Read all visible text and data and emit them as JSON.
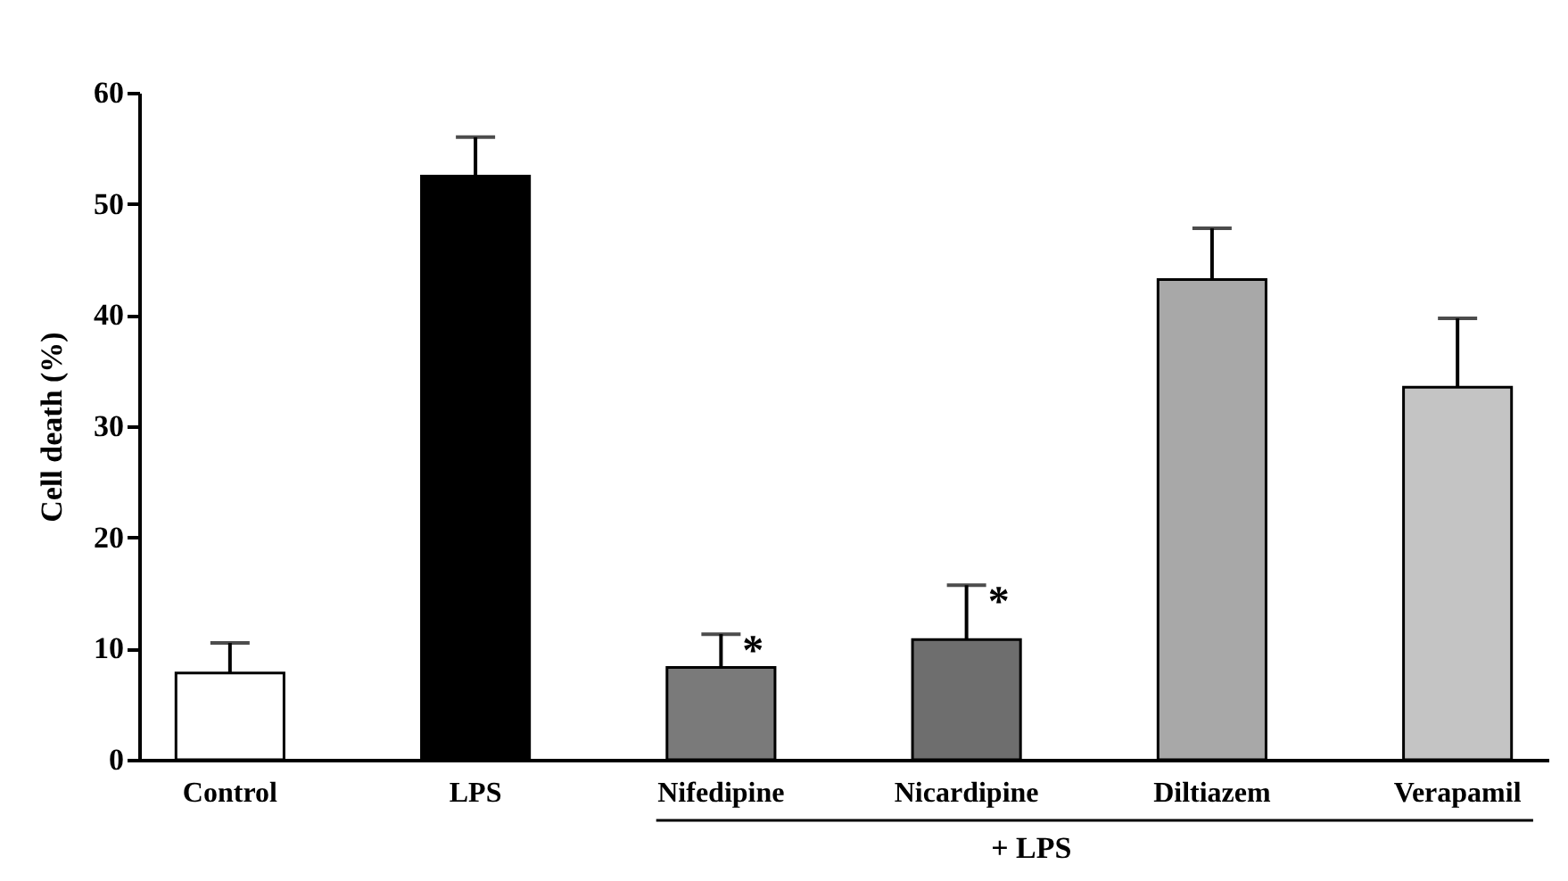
{
  "chart_data": {
    "type": "bar",
    "ylabel": "Cell death (%)",
    "categories": [
      "Control",
      "LPS",
      "Nifedipine",
      "Nicardipine",
      "Diltiazem",
      "Verapamil"
    ],
    "values": [
      7.8,
      52.5,
      8.3,
      10.8,
      43.2,
      33.5
    ],
    "errors": [
      [
        7.8,
        10.5
      ],
      [
        52.5,
        56
      ],
      [
        8.3,
        11.3
      ],
      [
        10.8,
        15.7
      ],
      [
        43.2,
        47.8
      ],
      [
        33.5,
        39.7
      ]
    ],
    "colors": [
      "#ffffff",
      "#000000",
      "#7a7a7a",
      "#6e6e6e",
      "#a8a8a8",
      "#c4c4c4"
    ],
    "ylim": [
      0,
      60
    ],
    "yticks": [
      0,
      10,
      20,
      30,
      40,
      50,
      60
    ],
    "grid": false,
    "annotations": [
      {
        "text": "*",
        "x": "Nifedipine",
        "y": 11.3
      },
      {
        "text": "*",
        "x": "Nicardipine",
        "y": 15.7
      },
      "+ LPS"
    ]
  }
}
